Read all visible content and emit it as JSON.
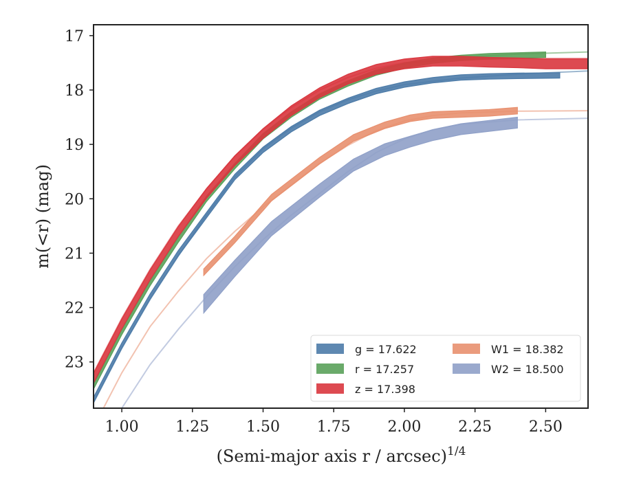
{
  "chart_data": {
    "type": "line",
    "xlabel": "(Semi-major axis r / arcsec)",
    "xlabel_superscript": "1/4",
    "ylabel": "m(<r) (mag)",
    "xlim": [
      0.9,
      2.65
    ],
    "ylim": [
      23.85,
      16.8
    ],
    "y_inverted": true,
    "x_ticks": [
      1.0,
      1.25,
      1.5,
      1.75,
      2.0,
      2.25,
      2.5
    ],
    "x_tick_labels": [
      "1.00",
      "1.25",
      "1.50",
      "1.75",
      "2.00",
      "2.25",
      "2.50"
    ],
    "y_ticks": [
      17,
      18,
      19,
      20,
      21,
      22,
      23
    ],
    "y_tick_labels": [
      "17",
      "18",
      "19",
      "20",
      "21",
      "22",
      "23"
    ],
    "grid": false,
    "legend_position": "lower-right",
    "series": [
      {
        "name": "g = 17.622",
        "legend_label": "g = 17.622",
        "color": "#4c7ba8",
        "band_halfwidth": 0.05,
        "data": {
          "x": [
            0.9,
            1.0,
            1.1,
            1.2,
            1.3,
            1.4,
            1.5,
            1.6,
            1.7,
            1.8,
            1.9,
            2.0,
            2.1,
            2.2,
            2.3,
            2.4,
            2.55
          ],
          "y": [
            23.7,
            22.7,
            21.8,
            21.0,
            20.3,
            19.6,
            19.1,
            18.72,
            18.42,
            18.2,
            18.02,
            17.9,
            17.82,
            17.77,
            17.75,
            17.74,
            17.73
          ]
        },
        "model": {
          "x": [
            0.9,
            1.0,
            1.1,
            1.2,
            1.3,
            1.4,
            1.5,
            1.6,
            1.7,
            1.8,
            1.9,
            2.0,
            2.2,
            2.4,
            2.65
          ],
          "y": [
            23.75,
            22.75,
            21.85,
            21.05,
            20.3,
            19.6,
            19.08,
            18.7,
            18.4,
            18.18,
            18.02,
            17.9,
            17.78,
            17.71,
            17.65
          ]
        }
      },
      {
        "name": "r = 17.257",
        "legend_label": "r = 17.257",
        "color": "#5aa15a",
        "band_halfwidth": 0.05,
        "data": {
          "x": [
            0.9,
            1.0,
            1.1,
            1.2,
            1.3,
            1.4,
            1.5,
            1.6,
            1.7,
            1.8,
            1.9,
            2.0,
            2.1,
            2.2,
            2.3,
            2.5
          ],
          "y": [
            23.45,
            22.45,
            21.55,
            20.75,
            20.0,
            19.4,
            18.85,
            18.45,
            18.12,
            17.88,
            17.68,
            17.55,
            17.46,
            17.41,
            17.38,
            17.35
          ]
        },
        "model": {
          "x": [
            0.9,
            1.0,
            1.1,
            1.2,
            1.3,
            1.4,
            1.5,
            1.6,
            1.7,
            1.8,
            1.9,
            2.0,
            2.2,
            2.4,
            2.65
          ],
          "y": [
            23.4,
            22.4,
            21.5,
            20.7,
            19.97,
            19.37,
            18.82,
            18.42,
            18.1,
            17.86,
            17.66,
            17.52,
            17.4,
            17.34,
            17.3
          ]
        }
      },
      {
        "name": "z = 17.398",
        "legend_label": "z = 17.398",
        "color": "#d9363e",
        "band_halfwidth": 0.09,
        "data": {
          "x": [
            0.9,
            1.0,
            1.1,
            1.2,
            1.3,
            1.4,
            1.5,
            1.6,
            1.7,
            1.8,
            1.9,
            2.0,
            2.1,
            2.2,
            2.3,
            2.4,
            2.5,
            2.65
          ],
          "y": [
            23.3,
            22.3,
            21.4,
            20.6,
            19.9,
            19.3,
            18.8,
            18.38,
            18.05,
            17.8,
            17.62,
            17.52,
            17.47,
            17.47,
            17.49,
            17.5,
            17.52,
            17.52
          ]
        },
        "model": {
          "x": [
            0.9,
            1.0,
            1.1,
            1.2,
            1.3,
            1.4,
            1.5,
            1.6,
            1.7,
            1.8,
            1.9,
            2.0,
            2.2,
            2.4,
            2.65
          ],
          "y": [
            23.2,
            22.2,
            21.3,
            20.5,
            19.82,
            19.22,
            18.72,
            18.32,
            18.0,
            17.77,
            17.6,
            17.5,
            17.44,
            17.42,
            17.42
          ]
        }
      },
      {
        "name": "W1 = 18.382",
        "legend_label": "W1 = 18.382",
        "color": "#e8906f",
        "band_halfwidth": 0.06,
        "data": {
          "x": [
            1.29,
            1.4,
            1.53,
            1.7,
            1.82,
            1.93,
            2.02,
            2.1,
            2.2,
            2.3,
            2.4
          ],
          "y": [
            21.35,
            20.75,
            19.98,
            19.3,
            18.88,
            18.65,
            18.52,
            18.46,
            18.44,
            18.42,
            18.38
          ]
        },
        "model": {
          "x": [
            0.9,
            1.0,
            1.1,
            1.2,
            1.3,
            1.4,
            1.5,
            1.6,
            1.7,
            1.8,
            1.9,
            2.0,
            2.1,
            2.2,
            2.4,
            2.65
          ],
          "y": [
            24.2,
            23.2,
            22.35,
            21.7,
            21.1,
            20.6,
            20.15,
            19.75,
            19.35,
            19.02,
            18.75,
            18.57,
            18.47,
            18.42,
            18.39,
            18.38
          ]
        }
      },
      {
        "name": "W2 = 18.500",
        "legend_label": "W2 = 18.500",
        "color": "#8fa0c8",
        "band_halfwidth": [
          0.17,
          0.15,
          0.13,
          0.12,
          0.11,
          0.11,
          0.1,
          0.1,
          0.1,
          0.1,
          0.1
        ],
        "data": {
          "x": [
            1.29,
            1.4,
            1.53,
            1.7,
            1.82,
            1.93,
            2.02,
            2.1,
            2.2,
            2.3,
            2.4
          ],
          "y": [
            21.93,
            21.28,
            20.55,
            19.85,
            19.38,
            19.1,
            18.95,
            18.83,
            18.72,
            18.66,
            18.6
          ]
        },
        "model": {
          "x": [
            1.0,
            1.1,
            1.2,
            1.3,
            1.4,
            1.5,
            1.6,
            1.7,
            1.8,
            1.9,
            2.0,
            2.1,
            2.2,
            2.4,
            2.65
          ],
          "y": [
            23.85,
            23.05,
            22.4,
            21.8,
            21.25,
            20.75,
            20.3,
            19.9,
            19.5,
            19.15,
            18.9,
            18.73,
            18.63,
            18.55,
            18.52
          ]
        }
      }
    ],
    "legend_layout": {
      "columns": 2,
      "order": [
        [
          0,
          1,
          2
        ],
        [
          3,
          4
        ]
      ]
    }
  }
}
